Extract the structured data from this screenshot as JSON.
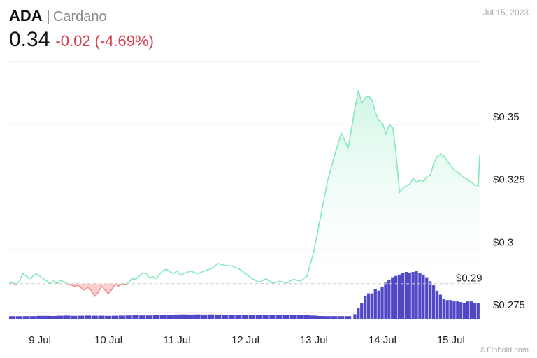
{
  "header": {
    "ticker": "ADA",
    "separator": "|",
    "name": "Cardano",
    "price": "0.34",
    "change": "-0.02",
    "change_pct": "(-4.69%)",
    "date": "Jul 15, 2023"
  },
  "footer": {
    "copyright_icon": "copyright-icon",
    "watermark": "Finbold.com"
  },
  "colors": {
    "up_line": "#7ee8b6",
    "up_fill": "#c9f5e1",
    "down_line": "#f08b8b",
    "down_fill": "#f9cfcf",
    "volume": "#5148c8",
    "grid": "#e3e3e3",
    "reference": "#cccccc",
    "down_text": "#d4414f"
  },
  "chart_data": {
    "type": "area",
    "title": "",
    "xlabel": "",
    "ylabel": "",
    "ylim": [
      0.2725,
      0.375
    ],
    "y_ticks": [
      0.275,
      0.3,
      0.325,
      0.35
    ],
    "y_tick_labels": [
      "$0.275",
      "$0.3",
      "$0.325",
      "$0.35"
    ],
    "x_range": [
      8.55,
      15.42
    ],
    "x_ticks": [
      9,
      10,
      11,
      12,
      13,
      14,
      15
    ],
    "x_tick_labels": [
      "9 Jul",
      "10 Jul",
      "11 Jul",
      "12 Jul",
      "13 Jul",
      "14 Jul",
      "15 Jul"
    ],
    "grid": true,
    "reference": {
      "value": 0.2865,
      "label": "$0.29"
    },
    "series": [
      {
        "x": [
          8.55,
          8.6,
          8.65,
          8.7,
          8.75,
          8.8,
          8.85,
          8.9,
          8.95,
          9.0,
          9.05,
          9.1,
          9.15,
          9.2,
          9.25,
          9.3,
          9.35,
          9.4,
          9.45,
          9.5,
          9.55,
          9.6,
          9.65,
          9.7,
          9.75,
          9.8,
          9.85,
          9.9,
          9.95,
          10.0,
          10.05,
          10.1,
          10.15,
          10.2,
          10.25,
          10.3,
          10.35,
          10.4,
          10.45,
          10.5,
          10.55,
          10.6,
          10.65,
          10.7,
          10.75,
          10.8,
          10.85,
          10.9,
          10.95,
          11.0,
          11.05,
          11.1,
          11.15,
          11.2,
          11.3,
          11.4,
          11.5,
          11.6,
          11.7,
          11.8,
          11.9,
          12.0,
          12.1,
          12.2,
          12.3,
          12.4,
          12.5,
          12.6,
          12.7,
          12.8,
          12.9,
          13.0,
          13.1,
          13.2,
          13.3,
          13.4,
          13.5,
          13.6,
          13.65,
          13.7,
          13.75,
          13.8,
          13.85,
          13.9,
          13.95,
          14.0,
          14.05,
          14.1,
          14.15,
          14.2,
          14.25,
          14.3,
          14.35,
          14.4,
          14.45,
          14.5,
          14.55,
          14.6,
          14.65,
          14.7,
          14.75,
          14.8,
          14.85,
          14.9,
          14.95,
          15.0,
          15.05,
          15.1,
          15.15,
          15.2,
          15.25,
          15.3,
          15.35,
          15.4,
          15.42
        ],
        "y": [
          0.2865,
          0.287,
          0.286,
          0.2875,
          0.2905,
          0.2895,
          0.2885,
          0.2895,
          0.2905,
          0.2895,
          0.2885,
          0.2875,
          0.2865,
          0.2875,
          0.2865,
          0.2878,
          0.2872,
          0.2865,
          0.286,
          0.2855,
          0.2858,
          0.2848,
          0.284,
          0.285,
          0.2838,
          0.2815,
          0.283,
          0.2855,
          0.284,
          0.2825,
          0.2842,
          0.2862,
          0.2855,
          0.2865,
          0.2862,
          0.2872,
          0.2885,
          0.2882,
          0.2895,
          0.2908,
          0.2905,
          0.2888,
          0.2892,
          0.2885,
          0.2903,
          0.2918,
          0.2922,
          0.2912,
          0.2905,
          0.2915,
          0.2898,
          0.2905,
          0.291,
          0.2915,
          0.2905,
          0.2915,
          0.2925,
          0.2945,
          0.2938,
          0.2935,
          0.2925,
          0.2905,
          0.2885,
          0.287,
          0.2885,
          0.2865,
          0.2875,
          0.2868,
          0.2882,
          0.2875,
          0.2895,
          0.2995,
          0.3135,
          0.3275,
          0.3375,
          0.3465,
          0.3405,
          0.3565,
          0.3635,
          0.3585,
          0.3605,
          0.3612,
          0.3595,
          0.3545,
          0.3515,
          0.3505,
          0.3462,
          0.3498,
          0.3488,
          0.3382,
          0.3228,
          0.3245,
          0.3255,
          0.3262,
          0.3285,
          0.3268,
          0.3278,
          0.3272,
          0.3292,
          0.3298,
          0.3345,
          0.3372,
          0.3382,
          0.3372,
          0.3352,
          0.3335,
          0.3318,
          0.3308,
          0.3298,
          0.3288,
          0.3278,
          0.3268,
          0.3258,
          0.3255,
          0.3378
        ]
      }
    ],
    "volume": {
      "x": [
        8.6,
        8.7,
        8.8,
        8.9,
        9.0,
        9.1,
        9.2,
        9.3,
        9.4,
        9.5,
        9.6,
        9.7,
        9.8,
        9.9,
        10.0,
        10.1,
        10.2,
        10.3,
        10.4,
        10.5,
        10.6,
        10.7,
        10.8,
        10.9,
        11.0,
        11.1,
        11.2,
        11.3,
        11.4,
        11.5,
        11.6,
        11.7,
        11.8,
        11.9,
        12.0,
        12.1,
        12.2,
        12.3,
        12.4,
        12.5,
        12.6,
        12.7,
        12.8,
        12.9,
        13.0,
        13.1,
        13.2,
        13.3,
        13.4,
        13.5,
        13.6,
        13.65,
        13.7,
        13.75,
        13.8,
        13.85,
        13.9,
        13.95,
        14.0,
        14.05,
        14.1,
        14.15,
        14.2,
        14.25,
        14.3,
        14.35,
        14.4,
        14.45,
        14.5,
        14.55,
        14.6,
        14.65,
        14.7,
        14.75,
        14.8,
        14.85,
        14.9,
        14.95,
        15.0,
        15.05,
        15.1,
        15.15,
        15.2,
        15.25,
        15.3,
        15.35,
        15.4
      ],
      "values": [
        2,
        2,
        2,
        2,
        2.2,
        2.2,
        2.1,
        2.3,
        2.4,
        2.2,
        2.3,
        2.4,
        2.3,
        2.3,
        2.2,
        2.3,
        2.4,
        2.5,
        2.6,
        2.5,
        2.5,
        2.6,
        2.8,
        3.0,
        3.2,
        3.3,
        3.2,
        3.3,
        3.2,
        3.3,
        3.2,
        3.0,
        3.0,
        2.9,
        2.8,
        2.7,
        2.7,
        2.8,
        2.9,
        2.9,
        2.8,
        2.7,
        2.6,
        2.6,
        2.4,
        2.1,
        2.0,
        2.0,
        2.0,
        2.0,
        3.5,
        8,
        12,
        17,
        19,
        19,
        22,
        21,
        24,
        27,
        29,
        31,
        32,
        33,
        34,
        35,
        34.5,
        35,
        35.5,
        34,
        33,
        31,
        28,
        25,
        21,
        18,
        15,
        14,
        14,
        13,
        13,
        12.5,
        12,
        13,
        13,
        12,
        12
      ]
    }
  }
}
